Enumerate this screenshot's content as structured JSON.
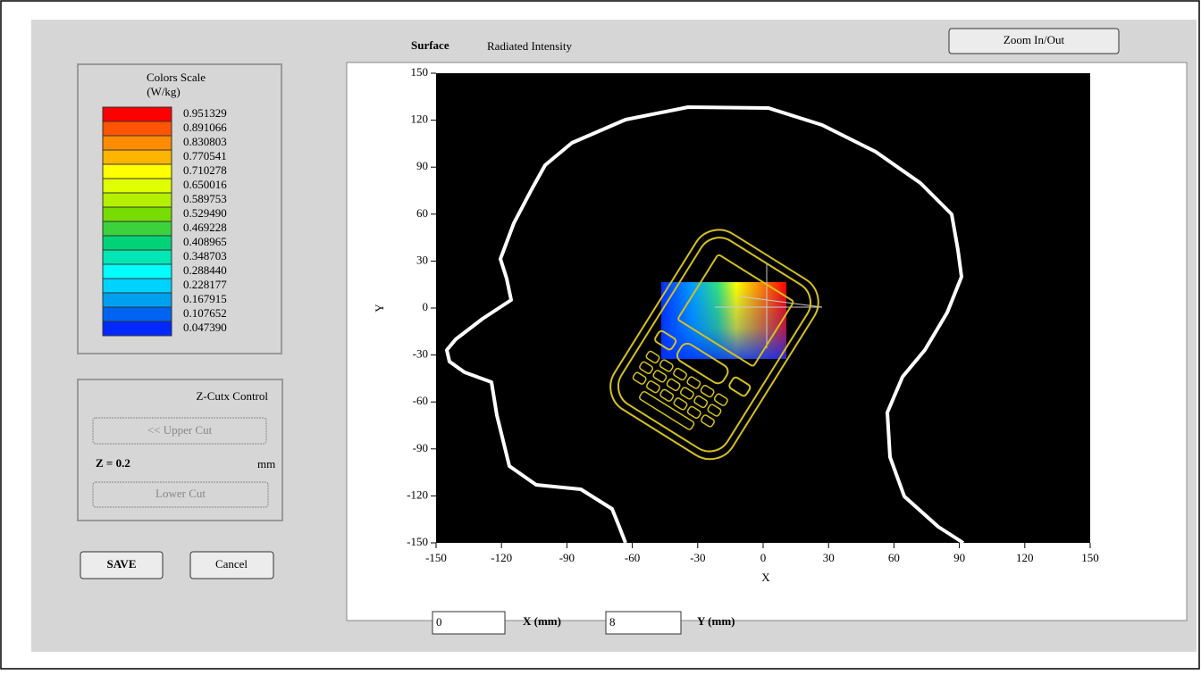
{
  "header": {
    "title_bold": "Surface",
    "title": "Radiated Intensity",
    "zoom_button": "Zoom In/Out"
  },
  "color_scale": {
    "title": "Colors Scale",
    "unit": "(W/kg)",
    "levels": [
      {
        "color": "#ff0000",
        "label": "0.951329"
      },
      {
        "color": "#ff5500",
        "label": "0.891066"
      },
      {
        "color": "#ff8c00",
        "label": "0.830803"
      },
      {
        "color": "#ffb400",
        "label": "0.770541"
      },
      {
        "color": "#ffff00",
        "label": "0.710278"
      },
      {
        "color": "#e0ff00",
        "label": "0.650016"
      },
      {
        "color": "#b4f000",
        "label": "0.589753"
      },
      {
        "color": "#78dc00",
        "label": "0.529490"
      },
      {
        "color": "#3cd23c",
        "label": "0.469228"
      },
      {
        "color": "#00d278",
        "label": "0.408965"
      },
      {
        "color": "#00e6b4",
        "label": "0.348703"
      },
      {
        "color": "#00ffff",
        "label": "0.288440"
      },
      {
        "color": "#00d2ff",
        "label": "0.228177"
      },
      {
        "color": "#00a0f0",
        "label": "0.167915"
      },
      {
        "color": "#0064f0",
        "label": "0.107652"
      },
      {
        "color": "#0028ff",
        "label": "0.047390"
      }
    ]
  },
  "z_cut": {
    "title": "Z-Cutx Control",
    "upper_button": "<< Upper Cut",
    "z_label": "Z = 0.2",
    "unit": "mm",
    "lower_button": "Lower Cut"
  },
  "buttons": {
    "save": "SAVE",
    "cancel": "Cancel"
  },
  "plot": {
    "xlim": [
      -150,
      150
    ],
    "ylim": [
      -150,
      150
    ],
    "xticks": [
      -150,
      -120,
      -90,
      -60,
      -30,
      0,
      30,
      60,
      90,
      120,
      150
    ],
    "yticks": [
      -150,
      -120,
      -90,
      -60,
      -30,
      0,
      30,
      60,
      90,
      120,
      150
    ],
    "x_label": "X",
    "y_label": "Y"
  },
  "footer": {
    "x_value": "0",
    "x_label": "X (mm)",
    "y_value": "8",
    "y_label": "Y (mm)"
  }
}
